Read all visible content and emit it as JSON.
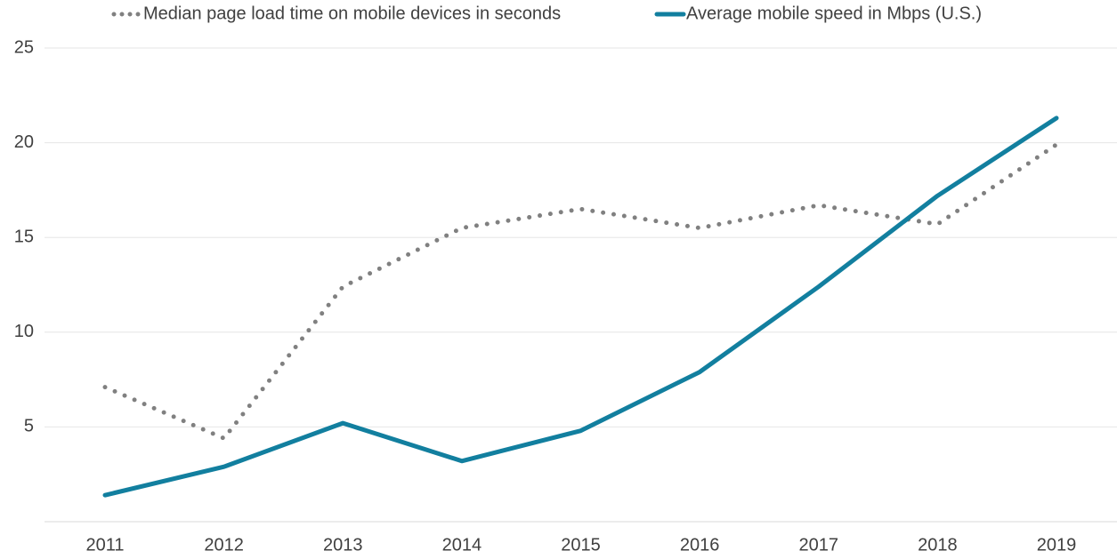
{
  "chart_data": {
    "type": "line",
    "categories": [
      "2011",
      "2012",
      "2013",
      "2014",
      "2015",
      "2016",
      "2017",
      "2018",
      "2019"
    ],
    "series": [
      {
        "name": "Median page load time on mobile devices in seconds",
        "color": "#808080",
        "style": "dotted",
        "values": [
          7.1,
          4.4,
          12.4,
          15.5,
          16.5,
          15.5,
          16.7,
          15.7,
          19.9
        ]
      },
      {
        "name": "Average mobile speed in Mbps (U.S.)",
        "color": "#127f9f",
        "style": "solid",
        "values": [
          1.4,
          2.9,
          5.2,
          3.2,
          4.8,
          7.9,
          12.4,
          17.2,
          21.3
        ]
      }
    ],
    "ylim": [
      0,
      25
    ],
    "yticks": [
      5,
      10,
      15,
      20,
      25
    ],
    "grid": true,
    "legend": "top"
  }
}
